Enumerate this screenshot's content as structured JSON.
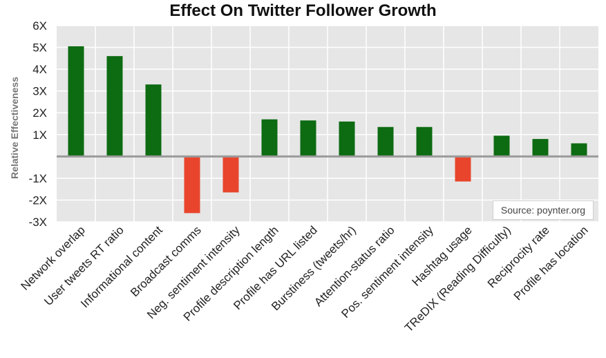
{
  "chart_data": {
    "type": "bar",
    "title": "Effect On Twitter Follower Growth",
    "xlabel": "",
    "ylabel": "Relative Effectiveness",
    "ylim": [
      -3,
      6
    ],
    "yticks": [
      6,
      5,
      4,
      3,
      2,
      1,
      -1,
      -2,
      -3
    ],
    "ytick_labels": [
      "6X",
      "5X",
      "4X",
      "3X",
      "2X",
      "1X",
      "-1X",
      "-2X",
      "-3X"
    ],
    "grid": true,
    "categories": [
      "Network overlap",
      "User tweets RT ratio",
      "Informational content",
      "Broadcast comms",
      "Neg. sentiment intensity",
      "Profile description length",
      "Profile has URL listed",
      "Burstiness (tweets/hr)",
      "Attention-status ratio",
      "Pos. sentiment intensity",
      "Hashtag usage",
      "TReDIX (Reading Difficulty)",
      "Reciprocity rate",
      "Profile has location"
    ],
    "values": [
      5.05,
      4.6,
      3.3,
      -2.6,
      -1.65,
      1.7,
      1.65,
      1.6,
      1.35,
      1.35,
      -1.15,
      0.95,
      0.8,
      0.6
    ],
    "colors": {
      "positive": "#0d6b12",
      "negative": "#e8452c",
      "plot_bg": "#e6e6e6",
      "zero_line": "#9a9a9a",
      "grid": "#ffffff"
    },
    "annotation": "Source: poynter.org"
  }
}
